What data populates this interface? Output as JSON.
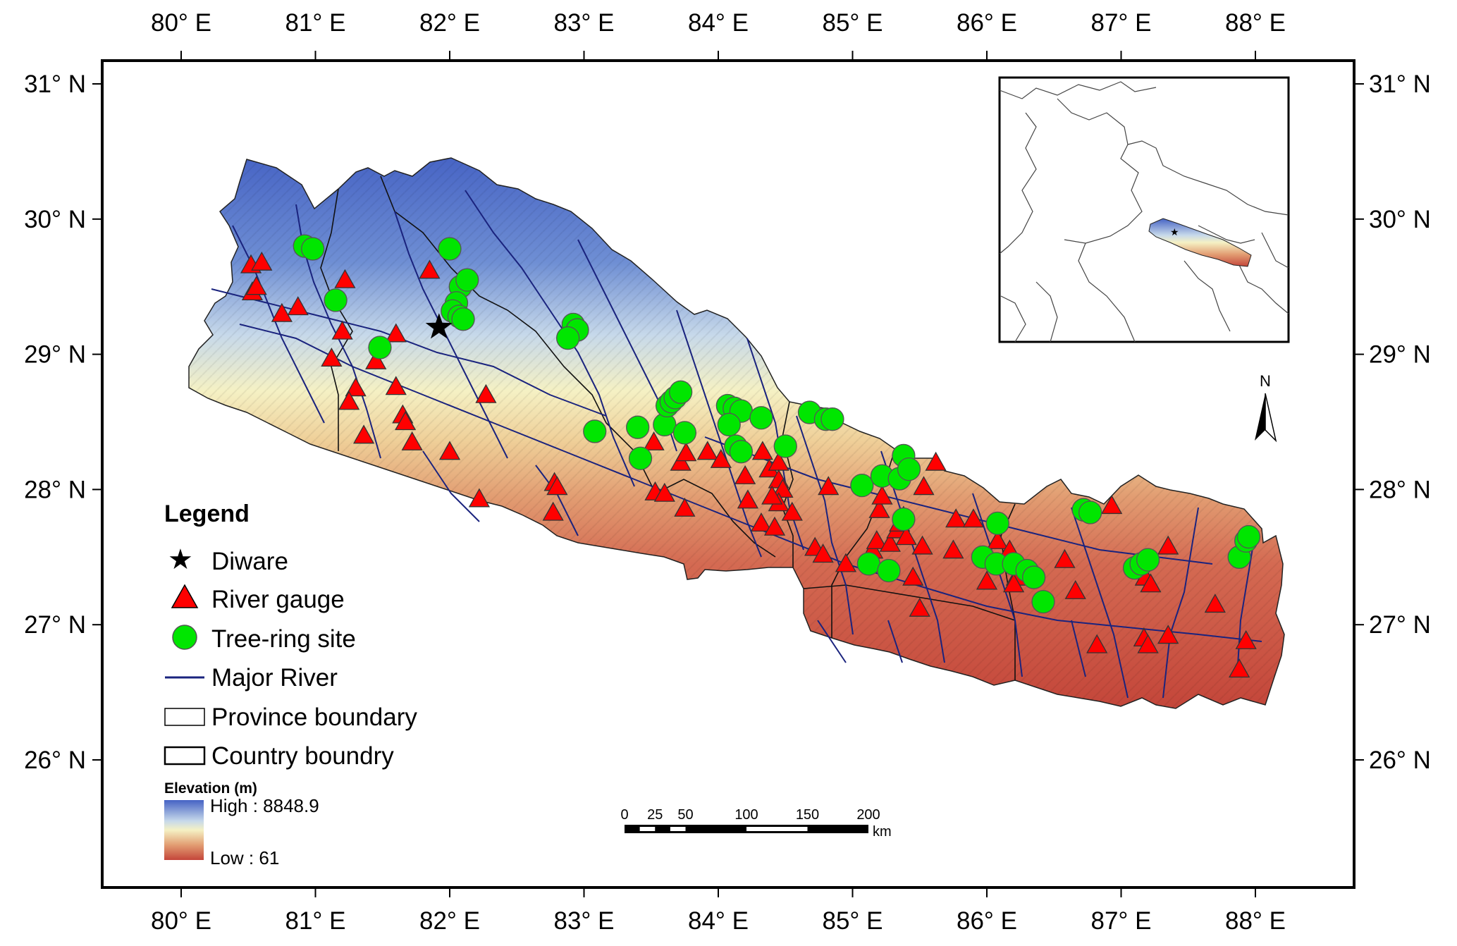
{
  "map": {
    "lon_labels": [
      "80° E",
      "81° E",
      "82° E",
      "83° E",
      "84° E",
      "85° E",
      "86° E",
      "87° E",
      "88° E"
    ],
    "lat_labels": [
      "31° N",
      "30° N",
      "29° N",
      "28° N",
      "27° N",
      "26° N"
    ],
    "lon_values": [
      80,
      81,
      82,
      83,
      84,
      85,
      86,
      87,
      88
    ],
    "lat_values": [
      31,
      30,
      29,
      28,
      27,
      26
    ],
    "colors": {
      "river_gauge": "#ff0000",
      "tree_ring": "#00e600",
      "river": "#1a237e",
      "elev_high": "#4a6fc2",
      "elev_mid": "#f5f1c4",
      "elev_low": "#c4463a"
    },
    "diware": {
      "lon": 81.92,
      "lat": 29.2
    },
    "river_gauges": [
      [
        80.52,
        29.66
      ],
      [
        80.6,
        29.68
      ],
      [
        80.53,
        29.46
      ],
      [
        80.56,
        29.5
      ],
      [
        80.75,
        29.3
      ],
      [
        80.87,
        29.35
      ],
      [
        81.22,
        29.55
      ],
      [
        81.2,
        29.17
      ],
      [
        81.12,
        28.97
      ],
      [
        81.45,
        28.95
      ],
      [
        81.6,
        29.15
      ],
      [
        81.3,
        28.75
      ],
      [
        81.25,
        28.65
      ],
      [
        81.36,
        28.4
      ],
      [
        81.6,
        28.76
      ],
      [
        81.65,
        28.55
      ],
      [
        81.67,
        28.5
      ],
      [
        81.72,
        28.35
      ],
      [
        81.85,
        29.62
      ],
      [
        82.0,
        28.28
      ],
      [
        82.27,
        28.7
      ],
      [
        82.22,
        27.93
      ],
      [
        82.78,
        28.05
      ],
      [
        82.8,
        28.02
      ],
      [
        82.77,
        27.83
      ],
      [
        83.52,
        28.35
      ],
      [
        83.53,
        27.98
      ],
      [
        83.6,
        27.97
      ],
      [
        83.72,
        28.2
      ],
      [
        83.76,
        28.27
      ],
      [
        83.75,
        27.86
      ],
      [
        83.92,
        28.28
      ],
      [
        84.02,
        28.22
      ],
      [
        84.2,
        28.1
      ],
      [
        84.22,
        27.92
      ],
      [
        84.33,
        28.28
      ],
      [
        84.38,
        28.15
      ],
      [
        84.45,
        28.2
      ],
      [
        84.45,
        28.07
      ],
      [
        84.48,
        28.0
      ],
      [
        84.45,
        27.9
      ],
      [
        84.4,
        27.95
      ],
      [
        84.55,
        27.83
      ],
      [
        84.32,
        27.75
      ],
      [
        84.42,
        27.72
      ],
      [
        84.72,
        27.57
      ],
      [
        84.78,
        27.52
      ],
      [
        84.82,
        28.02
      ],
      [
        84.95,
        27.45
      ],
      [
        85.15,
        27.55
      ],
      [
        85.18,
        27.62
      ],
      [
        85.2,
        27.85
      ],
      [
        85.22,
        27.95
      ],
      [
        85.28,
        27.6
      ],
      [
        85.33,
        27.7
      ],
      [
        85.35,
        27.75
      ],
      [
        85.38,
        27.8
      ],
      [
        85.4,
        27.65
      ],
      [
        85.45,
        27.35
      ],
      [
        85.52,
        27.58
      ],
      [
        85.53,
        28.02
      ],
      [
        85.5,
        27.12
      ],
      [
        85.62,
        28.2
      ],
      [
        85.75,
        27.55
      ],
      [
        85.77,
        27.78
      ],
      [
        85.9,
        27.78
      ],
      [
        86.0,
        27.32
      ],
      [
        86.08,
        27.62
      ],
      [
        86.17,
        27.55
      ],
      [
        86.22,
        27.35
      ],
      [
        86.2,
        27.3
      ],
      [
        86.58,
        27.48
      ],
      [
        86.66,
        27.25
      ],
      [
        86.82,
        26.85
      ],
      [
        86.93,
        27.88
      ],
      [
        87.17,
        26.9
      ],
      [
        87.2,
        26.85
      ],
      [
        87.18,
        27.35
      ],
      [
        87.22,
        27.3
      ],
      [
        87.35,
        27.58
      ],
      [
        87.35,
        26.92
      ],
      [
        87.7,
        27.15
      ],
      [
        87.88,
        26.67
      ],
      [
        87.93,
        26.88
      ]
    ],
    "tree_ring_sites": [
      [
        80.92,
        29.8
      ],
      [
        80.98,
        29.78
      ],
      [
        81.15,
        29.4
      ],
      [
        81.48,
        29.05
      ],
      [
        82.0,
        29.78
      ],
      [
        82.08,
        29.5
      ],
      [
        82.13,
        29.55
      ],
      [
        82.05,
        29.38
      ],
      [
        82.02,
        29.32
      ],
      [
        82.07,
        29.28
      ],
      [
        82.1,
        29.26
      ],
      [
        82.92,
        29.22
      ],
      [
        82.95,
        29.18
      ],
      [
        82.88,
        29.12
      ],
      [
        83.08,
        28.43
      ],
      [
        83.4,
        28.46
      ],
      [
        83.42,
        28.23
      ],
      [
        83.6,
        28.48
      ],
      [
        83.62,
        28.62
      ],
      [
        83.65,
        28.65
      ],
      [
        83.68,
        28.68
      ],
      [
        83.72,
        28.72
      ],
      [
        83.75,
        28.42
      ],
      [
        84.07,
        28.62
      ],
      [
        84.12,
        28.6
      ],
      [
        84.17,
        28.58
      ],
      [
        84.32,
        28.53
      ],
      [
        84.08,
        28.48
      ],
      [
        84.13,
        28.32
      ],
      [
        84.17,
        28.28
      ],
      [
        84.5,
        28.32
      ],
      [
        84.68,
        28.57
      ],
      [
        84.8,
        28.52
      ],
      [
        84.85,
        28.52
      ],
      [
        85.07,
        28.03
      ],
      [
        85.22,
        28.1
      ],
      [
        85.38,
        28.25
      ],
      [
        85.35,
        28.08
      ],
      [
        85.42,
        28.15
      ],
      [
        85.38,
        27.78
      ],
      [
        85.12,
        27.45
      ],
      [
        85.27,
        27.4
      ],
      [
        85.97,
        27.5
      ],
      [
        86.07,
        27.45
      ],
      [
        86.08,
        27.75
      ],
      [
        86.2,
        27.45
      ],
      [
        86.3,
        27.4
      ],
      [
        86.35,
        27.35
      ],
      [
        86.42,
        27.17
      ],
      [
        86.72,
        27.85
      ],
      [
        86.77,
        27.83
      ],
      [
        87.1,
        27.42
      ],
      [
        87.15,
        27.45
      ],
      [
        87.2,
        27.48
      ],
      [
        87.88,
        27.5
      ],
      [
        87.93,
        27.62
      ],
      [
        87.95,
        27.65
      ]
    ]
  },
  "legend": {
    "title": "Legend",
    "items": [
      "Diware",
      "River gauge",
      "Tree-ring site",
      "Major River",
      "Province boundary",
      "Country boundry"
    ]
  },
  "elevation": {
    "title": "Elevation (m)",
    "high": "High : 8848.9",
    "low": "Low : 61"
  },
  "scale_bar": {
    "labels": [
      "0",
      "25",
      "50",
      "100",
      "150",
      "200"
    ],
    "values": [
      0,
      25,
      50,
      100,
      150,
      200
    ],
    "unit": "km"
  },
  "north_label": "N"
}
